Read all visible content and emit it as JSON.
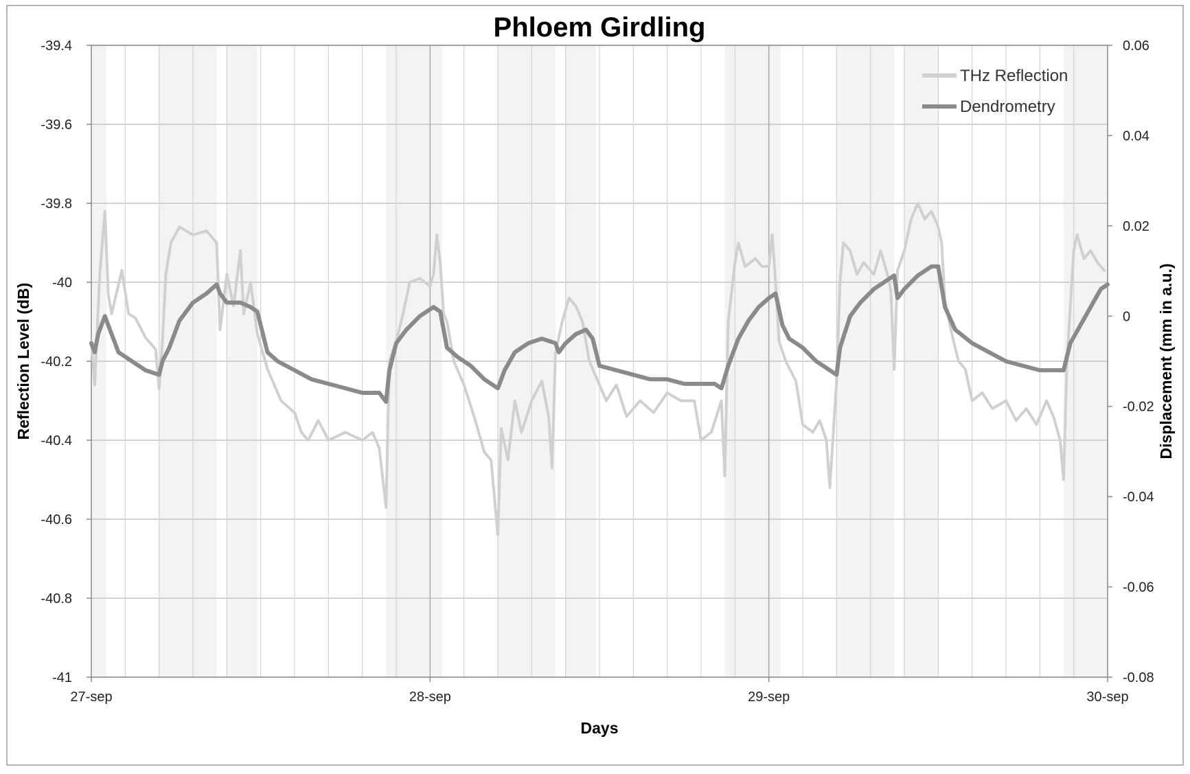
{
  "chart_data": {
    "type": "line",
    "title": "Phloem Girdling",
    "xlabel": "Days",
    "ylabel_left": "Reflection Level (dB)",
    "ylabel_right": "Displacement (mm in a.u.)",
    "x_ticks": [
      "27-sep",
      "28-sep",
      "29-sep",
      "30-sep"
    ],
    "x_range_days": [
      0,
      3
    ],
    "ylim_left": [
      -41,
      -39.4
    ],
    "ylim_right": [
      -0.08,
      0.06
    ],
    "y_ticks_left": [
      "-39.4",
      "-39.6",
      "-39.8",
      "-40",
      "-40.2",
      "-40.4",
      "-40.6",
      "-40.8",
      "-41"
    ],
    "y_ticks_right": [
      "0.06",
      "0.04",
      "0.02",
      "0",
      "-0.02",
      "-0.04",
      "-0.06",
      "-0.08"
    ],
    "grid": true,
    "legend_position": "top-right",
    "shaded_bands_days": [
      [
        0,
        0.045
      ],
      [
        0.2,
        0.37
      ],
      [
        0.4,
        0.49
      ],
      [
        0.87,
        1.035
      ],
      [
        1.2,
        1.37
      ],
      [
        1.4,
        1.49
      ],
      [
        1.87,
        2.035
      ],
      [
        2.2,
        2.37
      ],
      [
        2.4,
        2.5
      ],
      [
        2.87,
        3.0
      ]
    ],
    "series": [
      {
        "name": "THz Reflection",
        "axis": "left",
        "color": "#d0d0d0",
        "points": [
          [
            0,
            -40.15
          ],
          [
            0.01,
            -40.26
          ],
          [
            0.025,
            -39.98
          ],
          [
            0.04,
            -39.82
          ],
          [
            0.05,
            -40.03
          ],
          [
            0.06,
            -40.08
          ],
          [
            0.09,
            -39.97
          ],
          [
            0.11,
            -40.08
          ],
          [
            0.13,
            -40.09
          ],
          [
            0.16,
            -40.14
          ],
          [
            0.19,
            -40.17
          ],
          [
            0.2,
            -40.27
          ],
          [
            0.21,
            -40.15
          ],
          [
            0.22,
            -39.98
          ],
          [
            0.235,
            -39.9
          ],
          [
            0.26,
            -39.86
          ],
          [
            0.3,
            -39.88
          ],
          [
            0.34,
            -39.87
          ],
          [
            0.37,
            -39.9
          ],
          [
            0.38,
            -40.12
          ],
          [
            0.4,
            -39.98
          ],
          [
            0.42,
            -40.06
          ],
          [
            0.44,
            -39.92
          ],
          [
            0.45,
            -40.08
          ],
          [
            0.47,
            -40.0
          ],
          [
            0.49,
            -40.13
          ],
          [
            0.52,
            -40.22
          ],
          [
            0.56,
            -40.3
          ],
          [
            0.6,
            -40.33
          ],
          [
            0.62,
            -40.38
          ],
          [
            0.64,
            -40.4
          ],
          [
            0.67,
            -40.35
          ],
          [
            0.7,
            -40.4
          ],
          [
            0.75,
            -40.38
          ],
          [
            0.8,
            -40.4
          ],
          [
            0.83,
            -40.38
          ],
          [
            0.85,
            -40.42
          ],
          [
            0.87,
            -40.57
          ],
          [
            0.88,
            -40.2
          ],
          [
            0.9,
            -40.15
          ],
          [
            0.92,
            -40.08
          ],
          [
            0.94,
            -40.0
          ],
          [
            0.97,
            -39.99
          ],
          [
            1.0,
            -40.01
          ],
          [
            1.01,
            -39.98
          ],
          [
            1.02,
            -39.88
          ],
          [
            1.03,
            -39.95
          ],
          [
            1.04,
            -40.08
          ],
          [
            1.05,
            -40.1
          ],
          [
            1.07,
            -40.2
          ],
          [
            1.1,
            -40.26
          ],
          [
            1.13,
            -40.34
          ],
          [
            1.16,
            -40.43
          ],
          [
            1.18,
            -40.45
          ],
          [
            1.2,
            -40.64
          ],
          [
            1.21,
            -40.37
          ],
          [
            1.23,
            -40.45
          ],
          [
            1.25,
            -40.3
          ],
          [
            1.27,
            -40.38
          ],
          [
            1.3,
            -40.3
          ],
          [
            1.33,
            -40.25
          ],
          [
            1.35,
            -40.34
          ],
          [
            1.36,
            -40.47
          ],
          [
            1.37,
            -40.18
          ],
          [
            1.39,
            -40.1
          ],
          [
            1.41,
            -40.04
          ],
          [
            1.43,
            -40.06
          ],
          [
            1.45,
            -40.1
          ],
          [
            1.47,
            -40.2
          ],
          [
            1.49,
            -40.24
          ],
          [
            1.52,
            -40.3
          ],
          [
            1.55,
            -40.26
          ],
          [
            1.58,
            -40.34
          ],
          [
            1.62,
            -40.3
          ],
          [
            1.66,
            -40.33
          ],
          [
            1.7,
            -40.28
          ],
          [
            1.74,
            -40.3
          ],
          [
            1.78,
            -40.3
          ],
          [
            1.8,
            -40.4
          ],
          [
            1.83,
            -40.38
          ],
          [
            1.86,
            -40.3
          ],
          [
            1.87,
            -40.49
          ],
          [
            1.88,
            -40.1
          ],
          [
            1.9,
            -39.95
          ],
          [
            1.91,
            -39.9
          ],
          [
            1.93,
            -39.96
          ],
          [
            1.96,
            -39.94
          ],
          [
            1.98,
            -39.96
          ],
          [
            2.0,
            -39.96
          ],
          [
            2.01,
            -39.88
          ],
          [
            2.02,
            -40.0
          ],
          [
            2.03,
            -40.15
          ],
          [
            2.05,
            -40.2
          ],
          [
            2.08,
            -40.25
          ],
          [
            2.1,
            -40.36
          ],
          [
            2.13,
            -40.38
          ],
          [
            2.15,
            -40.35
          ],
          [
            2.17,
            -40.4
          ],
          [
            2.18,
            -40.52
          ],
          [
            2.2,
            -40.25
          ],
          [
            2.21,
            -40.0
          ],
          [
            2.22,
            -39.9
          ],
          [
            2.24,
            -39.92
          ],
          [
            2.26,
            -39.98
          ],
          [
            2.28,
            -39.95
          ],
          [
            2.31,
            -39.98
          ],
          [
            2.33,
            -39.92
          ],
          [
            2.35,
            -39.98
          ],
          [
            2.36,
            -40.02
          ],
          [
            2.37,
            -40.22
          ],
          [
            2.38,
            -39.97
          ],
          [
            2.4,
            -39.92
          ],
          [
            2.42,
            -39.84
          ],
          [
            2.44,
            -39.8
          ],
          [
            2.46,
            -39.84
          ],
          [
            2.48,
            -39.82
          ],
          [
            2.5,
            -39.86
          ],
          [
            2.51,
            -39.9
          ],
          [
            2.52,
            -40.05
          ],
          [
            2.54,
            -40.13
          ],
          [
            2.56,
            -40.2
          ],
          [
            2.58,
            -40.22
          ],
          [
            2.6,
            -40.3
          ],
          [
            2.63,
            -40.28
          ],
          [
            2.66,
            -40.32
          ],
          [
            2.7,
            -40.3
          ],
          [
            2.73,
            -40.35
          ],
          [
            2.76,
            -40.32
          ],
          [
            2.79,
            -40.36
          ],
          [
            2.82,
            -40.3
          ],
          [
            2.84,
            -40.34
          ],
          [
            2.86,
            -40.4
          ],
          [
            2.87,
            -40.5
          ],
          [
            2.88,
            -40.2
          ],
          [
            2.9,
            -39.92
          ],
          [
            2.91,
            -39.88
          ],
          [
            2.93,
            -39.94
          ],
          [
            2.95,
            -39.92
          ],
          [
            2.97,
            -39.95
          ],
          [
            2.99,
            -39.97
          ]
        ]
      },
      {
        "name": "Dendrometry",
        "axis": "right",
        "color": "#8a8a8a",
        "points": [
          [
            0,
            -0.006
          ],
          [
            0.01,
            -0.008
          ],
          [
            0.02,
            -0.004
          ],
          [
            0.04,
            0.0
          ],
          [
            0.06,
            -0.004
          ],
          [
            0.08,
            -0.008
          ],
          [
            0.12,
            -0.01
          ],
          [
            0.16,
            -0.012
          ],
          [
            0.2,
            -0.013
          ],
          [
            0.21,
            -0.01
          ],
          [
            0.23,
            -0.007
          ],
          [
            0.26,
            -0.001
          ],
          [
            0.3,
            0.003
          ],
          [
            0.34,
            0.005
          ],
          [
            0.37,
            0.007
          ],
          [
            0.38,
            0.005
          ],
          [
            0.4,
            0.003
          ],
          [
            0.44,
            0.003
          ],
          [
            0.47,
            0.002
          ],
          [
            0.49,
            0.001
          ],
          [
            0.52,
            -0.008
          ],
          [
            0.55,
            -0.01
          ],
          [
            0.6,
            -0.012
          ],
          [
            0.65,
            -0.014
          ],
          [
            0.7,
            -0.015
          ],
          [
            0.75,
            -0.016
          ],
          [
            0.8,
            -0.017
          ],
          [
            0.85,
            -0.017
          ],
          [
            0.87,
            -0.019
          ],
          [
            0.88,
            -0.012
          ],
          [
            0.9,
            -0.006
          ],
          [
            0.93,
            -0.003
          ],
          [
            0.97,
            0.0
          ],
          [
            1.01,
            0.002
          ],
          [
            1.03,
            0.001
          ],
          [
            1.05,
            -0.007
          ],
          [
            1.08,
            -0.009
          ],
          [
            1.12,
            -0.011
          ],
          [
            1.16,
            -0.014
          ],
          [
            1.2,
            -0.016
          ],
          [
            1.22,
            -0.012
          ],
          [
            1.25,
            -0.008
          ],
          [
            1.29,
            -0.006
          ],
          [
            1.33,
            -0.005
          ],
          [
            1.37,
            -0.006
          ],
          [
            1.38,
            -0.008
          ],
          [
            1.4,
            -0.006
          ],
          [
            1.43,
            -0.004
          ],
          [
            1.46,
            -0.003
          ],
          [
            1.48,
            -0.005
          ],
          [
            1.5,
            -0.011
          ],
          [
            1.55,
            -0.012
          ],
          [
            1.6,
            -0.013
          ],
          [
            1.65,
            -0.014
          ],
          [
            1.7,
            -0.014
          ],
          [
            1.75,
            -0.015
          ],
          [
            1.8,
            -0.015
          ],
          [
            1.84,
            -0.015
          ],
          [
            1.86,
            -0.016
          ],
          [
            1.88,
            -0.011
          ],
          [
            1.91,
            -0.005
          ],
          [
            1.94,
            -0.001
          ],
          [
            1.97,
            0.002
          ],
          [
            2.0,
            0.004
          ],
          [
            2.02,
            0.005
          ],
          [
            2.04,
            -0.002
          ],
          [
            2.06,
            -0.005
          ],
          [
            2.1,
            -0.007
          ],
          [
            2.14,
            -0.01
          ],
          [
            2.18,
            -0.012
          ],
          [
            2.2,
            -0.013
          ],
          [
            2.21,
            -0.007
          ],
          [
            2.24,
            0.0
          ],
          [
            2.27,
            0.003
          ],
          [
            2.31,
            0.006
          ],
          [
            2.35,
            0.008
          ],
          [
            2.37,
            0.009
          ],
          [
            2.38,
            0.004
          ],
          [
            2.4,
            0.006
          ],
          [
            2.44,
            0.009
          ],
          [
            2.48,
            0.011
          ],
          [
            2.5,
            0.011
          ],
          [
            2.52,
            0.002
          ],
          [
            2.55,
            -0.003
          ],
          [
            2.6,
            -0.006
          ],
          [
            2.65,
            -0.008
          ],
          [
            2.7,
            -0.01
          ],
          [
            2.75,
            -0.011
          ],
          [
            2.8,
            -0.012
          ],
          [
            2.85,
            -0.012
          ],
          [
            2.87,
            -0.012
          ],
          [
            2.89,
            -0.006
          ],
          [
            2.92,
            -0.002
          ],
          [
            2.95,
            0.002
          ],
          [
            2.98,
            0.006
          ],
          [
            3.0,
            0.007
          ]
        ]
      }
    ]
  }
}
